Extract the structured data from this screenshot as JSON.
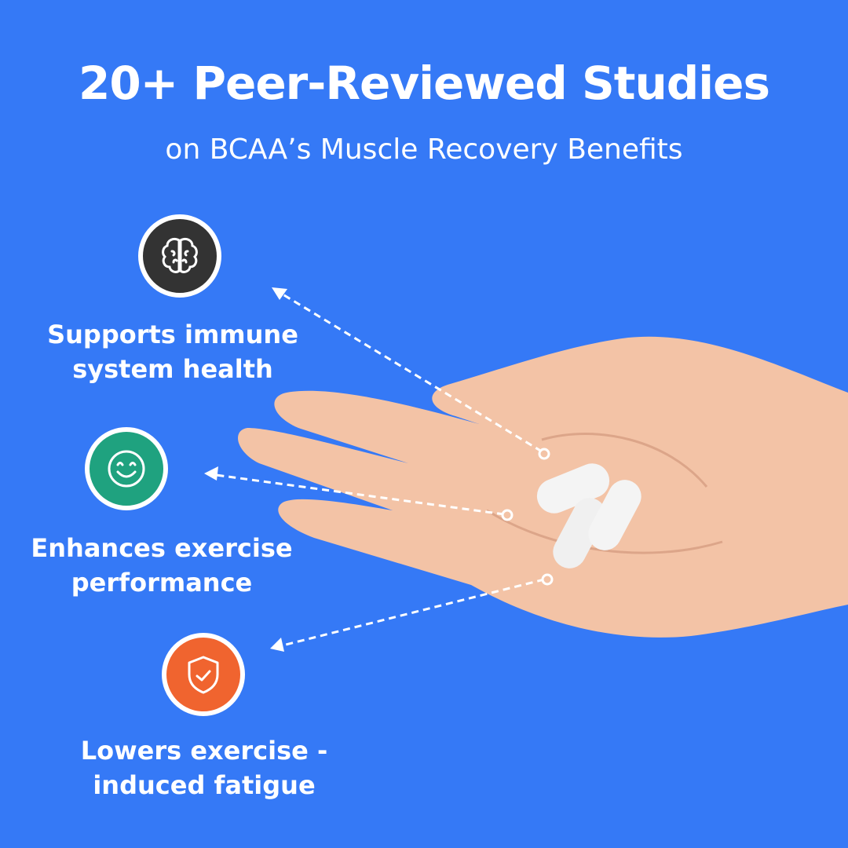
{
  "header": {
    "title": "20+ Peer-Reviewed Studies",
    "subtitle": "on BCAA’s Muscle Recovery Benefits"
  },
  "benefits": [
    {
      "icon": "brain-icon",
      "color": "#333333",
      "line1": "Supports immune",
      "line2": "system health"
    },
    {
      "icon": "smiley-icon",
      "color": "#1fa27f",
      "line1": "Enhances exercise",
      "line2": "performance"
    },
    {
      "icon": "shield-check-icon",
      "color": "#f0642f",
      "line1": "Lowers exercise -",
      "line2": "induced fatigue"
    }
  ],
  "colors": {
    "background": "#3579f6",
    "skin": "#f3c3a6",
    "pill": "#f4f4f4"
  }
}
